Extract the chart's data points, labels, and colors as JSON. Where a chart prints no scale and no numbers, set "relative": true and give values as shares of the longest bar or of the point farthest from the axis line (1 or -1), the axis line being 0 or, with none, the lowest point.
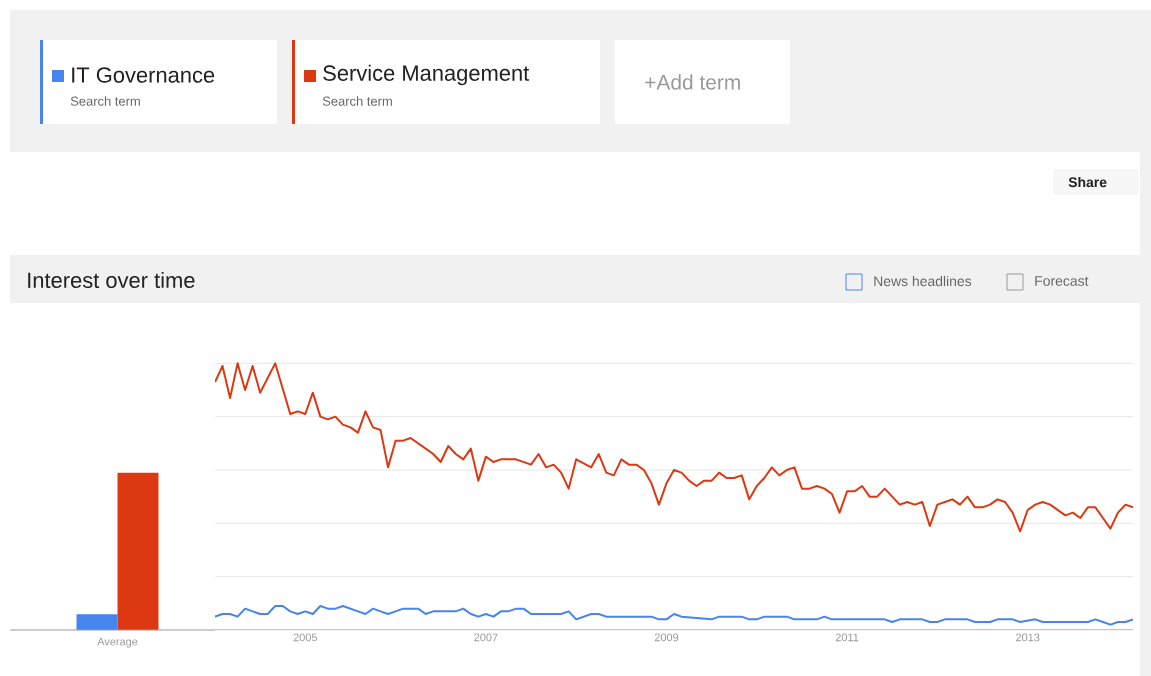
{
  "chart_data": [
    {
      "type": "bar",
      "categories": [
        "Average"
      ],
      "relative": true,
      "series": [
        {
          "color": "#4684ee",
          "values": [
            0.1
          ]
        },
        {
          "color": "#dc3912",
          "values": [
            1
          ]
        }
      ]
    },
    {
      "type": "line",
      "title": "Interest over time",
      "relative": true,
      "grid": "y",
      "legend": "top",
      "xlim": [
        "2004-01",
        "2014-03"
      ],
      "xticks": [
        "2005",
        "2007",
        "2009",
        "2011",
        "2013"
      ],
      "annotations": [
        "Search term",
        "Search term",
        "+Add term",
        "Share",
        "News headlines",
        "Forecast"
      ],
      "series": [
        {
          "name": "IT Governance",
          "color": "#4684ee",
          "x": [
            "2004-01",
            "2004-02",
            "2004-03",
            "2004-04",
            "2004-05",
            "2004-06",
            "2004-07",
            "2004-08",
            "2004-09",
            "2004-10",
            "2004-11",
            "2004-12",
            "2005-01",
            "2005-02",
            "2005-03",
            "2005-04",
            "2005-05",
            "2005-06",
            "2005-07",
            "2005-08",
            "2005-09",
            "2005-10",
            "2005-11",
            "2005-12",
            "2006-01",
            "2006-02",
            "2006-04",
            "2006-05",
            "2006-06",
            "2006-09",
            "2006-10",
            "2006-11",
            "2006-12",
            "2007-01",
            "2007-02",
            "2007-03",
            "2007-04",
            "2007-05",
            "2007-06",
            "2007-07",
            "2007-11",
            "2007-12",
            "2008-01",
            "2008-03",
            "2008-04",
            "2008-05",
            "2008-11",
            "2008-12",
            "2009-01",
            "2009-02",
            "2009-03",
            "2009-07",
            "2009-08",
            "2009-11",
            "2009-12",
            "2010-01",
            "2010-02",
            "2010-05",
            "2010-06",
            "2010-09",
            "2010-10",
            "2010-11",
            "2011-06",
            "2011-07",
            "2011-08",
            "2011-11",
            "2011-12",
            "2012-01",
            "2012-02",
            "2012-05",
            "2012-06",
            "2012-08",
            "2012-09",
            "2012-11",
            "2012-12",
            "2013-02",
            "2013-03",
            "2013-09",
            "2013-10",
            "2013-11",
            "2013-12",
            "2014-01",
            "2014-02",
            "2014-03"
          ],
          "values": [
            0.05,
            0.06,
            0.06,
            0.05,
            0.08,
            0.07,
            0.06,
            0.06,
            0.09,
            0.09,
            0.07,
            0.06,
            0.07,
            0.06,
            0.09,
            0.08,
            0.08,
            0.09,
            0.08,
            0.07,
            0.06,
            0.08,
            0.07,
            0.06,
            0.07,
            0.08,
            0.08,
            0.06,
            0.07,
            0.07,
            0.08,
            0.06,
            0.05,
            0.06,
            0.05,
            0.07,
            0.07,
            0.08,
            0.08,
            0.06,
            0.06,
            0.07,
            0.04,
            0.06,
            0.06,
            0.05,
            0.05,
            0.04,
            0.04,
            0.06,
            0.05,
            0.04,
            0.05,
            0.05,
            0.04,
            0.04,
            0.05,
            0.05,
            0.04,
            0.04,
            0.05,
            0.04,
            0.04,
            0.03,
            0.04,
            0.04,
            0.03,
            0.03,
            0.04,
            0.04,
            0.03,
            0.03,
            0.04,
            0.04,
            0.03,
            0.04,
            0.03,
            0.03,
            0.04,
            0.03,
            0.02,
            0.03,
            0.03,
            0.04
          ]
        },
        {
          "name": "Service Management",
          "color": "#dc3912",
          "x": [
            "2004-01",
            "2004-02",
            "2004-03",
            "2004-04",
            "2004-05",
            "2004-06",
            "2004-07",
            "2004-09",
            "2004-11",
            "2004-12",
            "2005-01",
            "2005-02",
            "2005-03",
            "2005-04",
            "2005-05",
            "2005-06",
            "2005-07",
            "2005-08",
            "2005-09",
            "2005-10",
            "2005-11",
            "2005-12",
            "2006-01",
            "2006-02",
            "2006-03",
            "2006-05",
            "2006-06",
            "2006-07",
            "2006-08",
            "2006-09",
            "2006-10",
            "2006-11",
            "2006-12",
            "2007-01",
            "2007-02",
            "2007-03",
            "2007-04",
            "2007-05",
            "2007-07",
            "2007-08",
            "2007-09",
            "2007-10",
            "2007-11",
            "2007-12",
            "2008-01",
            "2008-03",
            "2008-04",
            "2008-05",
            "2008-06",
            "2008-07",
            "2008-08",
            "2008-09",
            "2008-10",
            "2008-11",
            "2008-12",
            "2009-01",
            "2009-02",
            "2009-03",
            "2009-04",
            "2009-05",
            "2009-06",
            "2009-07",
            "2009-08",
            "2009-09",
            "2009-10",
            "2009-11",
            "2009-12",
            "2010-01",
            "2010-02",
            "2010-03",
            "2010-04",
            "2010-05",
            "2010-06",
            "2010-07",
            "2010-08",
            "2010-09",
            "2010-10",
            "2010-11",
            "2010-12",
            "2011-01",
            "2011-02",
            "2011-03",
            "2011-04",
            "2011-05",
            "2011-06",
            "2011-07",
            "2011-08",
            "2011-09",
            "2011-10",
            "2011-11",
            "2011-12",
            "2012-01",
            "2012-02",
            "2012-03",
            "2012-04",
            "2012-05",
            "2012-06",
            "2012-07",
            "2012-08",
            "2012-09",
            "2012-10",
            "2012-11",
            "2012-12",
            "2013-01",
            "2013-02",
            "2013-03",
            "2013-04",
            "2013-05",
            "2013-06",
            "2013-07",
            "2013-08",
            "2013-09",
            "2013-10",
            "2013-11",
            "2013-12",
            "2014-01",
            "2014-02",
            "2014-03"
          ],
          "values": [
            0.93,
            0.99,
            0.87,
            1,
            0.9,
            0.99,
            0.89,
            1,
            0.81,
            0.82,
            0.81,
            0.89,
            0.8,
            0.79,
            0.8,
            0.77,
            0.76,
            0.74,
            0.82,
            0.76,
            0.75,
            0.61,
            0.71,
            0.71,
            0.72,
            0.68,
            0.66,
            0.63,
            0.69,
            0.66,
            0.64,
            0.68,
            0.56,
            0.65,
            0.63,
            0.64,
            0.64,
            0.64,
            0.62,
            0.66,
            0.61,
            0.62,
            0.59,
            0.53,
            0.64,
            0.61,
            0.66,
            0.59,
            0.58,
            0.64,
            0.62,
            0.62,
            0.6,
            0.55,
            0.47,
            0.55,
            0.6,
            0.59,
            0.56,
            0.54,
            0.56,
            0.56,
            0.59,
            0.57,
            0.57,
            0.58,
            0.49,
            0.54,
            0.57,
            0.61,
            0.58,
            0.6,
            0.61,
            0.53,
            0.53,
            0.54,
            0.53,
            0.51,
            0.44,
            0.52,
            0.52,
            0.54,
            0.5,
            0.5,
            0.53,
            0.5,
            0.47,
            0.48,
            0.47,
            0.48,
            0.39,
            0.47,
            0.48,
            0.49,
            0.47,
            0.5,
            0.46,
            0.46,
            0.47,
            0.49,
            0.48,
            0.44,
            0.37,
            0.45,
            0.47,
            0.48,
            0.47,
            0.45,
            0.43,
            0.44,
            0.42,
            0.46,
            0.46,
            0.42,
            0.38,
            0.44,
            0.47,
            0.46
          ]
        }
      ]
    }
  ]
}
